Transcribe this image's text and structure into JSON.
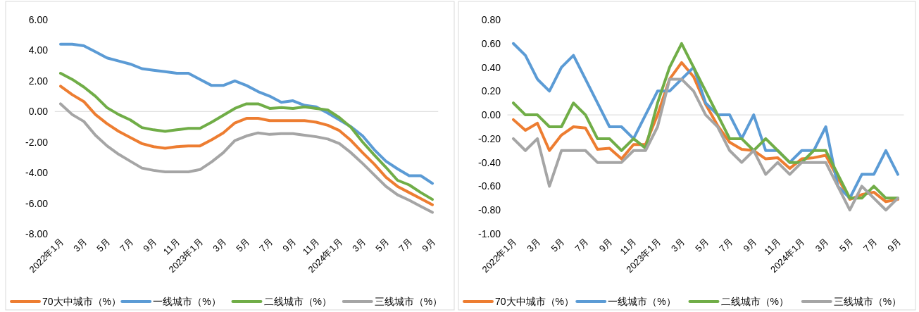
{
  "chart_data": [
    {
      "type": "line",
      "categories": [
        "2022年1月",
        null,
        "3月",
        null,
        "5月",
        null,
        "7月",
        null,
        "9月",
        null,
        "11月",
        null,
        "2023年1月",
        null,
        "3月",
        null,
        "5月",
        null,
        "7月",
        null,
        "9月",
        null,
        "11月",
        null,
        "2024年1月",
        null,
        "3月",
        null,
        "5月",
        null,
        "7月",
        null,
        "9月"
      ],
      "series": [
        {
          "name": "70大中城市（%）",
          "color": "#ed7d31",
          "values": [
            1.65,
            1.1,
            0.65,
            -0.2,
            -0.8,
            -1.3,
            -1.7,
            -2.1,
            -2.3,
            -2.4,
            -2.3,
            -2.25,
            -2.25,
            -1.85,
            -1.4,
            -0.75,
            -0.45,
            -0.45,
            -0.6,
            -0.6,
            -0.6,
            -0.6,
            -0.7,
            -0.9,
            -1.25,
            -1.9,
            -2.7,
            -3.45,
            -4.3,
            -4.9,
            -5.3,
            -5.7,
            -6.1
          ]
        },
        {
          "name": "一线城市（%）",
          "color": "#5b9bd5",
          "values": [
            4.4,
            4.4,
            4.3,
            3.9,
            3.5,
            3.3,
            3.1,
            2.8,
            2.7,
            2.6,
            2.5,
            2.5,
            2.1,
            1.7,
            1.7,
            2.0,
            1.7,
            1.3,
            1.0,
            0.6,
            0.7,
            0.4,
            0.3,
            -0.1,
            -0.55,
            -1.0,
            -1.6,
            -2.5,
            -3.25,
            -3.75,
            -4.2,
            -4.2,
            -4.7
          ]
        },
        {
          "name": "二线城市（%）",
          "color": "#70ad47",
          "values": [
            2.5,
            2.1,
            1.6,
            1.0,
            0.25,
            -0.2,
            -0.55,
            -1.05,
            -1.2,
            -1.3,
            -1.2,
            -1.1,
            -1.1,
            -0.7,
            -0.25,
            0.2,
            0.5,
            0.5,
            0.2,
            0.25,
            0.2,
            0.3,
            0.2,
            0.1,
            -0.4,
            -1.05,
            -2.0,
            -2.85,
            -3.65,
            -4.5,
            -4.8,
            -5.3,
            -5.75
          ]
        },
        {
          "name": "三线城市（%）",
          "color": "#a5a5a5",
          "values": [
            0.5,
            -0.2,
            -0.65,
            -1.55,
            -2.25,
            -2.8,
            -3.25,
            -3.7,
            -3.85,
            -3.95,
            -3.95,
            -3.95,
            -3.8,
            -3.3,
            -2.7,
            -1.9,
            -1.6,
            -1.4,
            -1.5,
            -1.45,
            -1.45,
            -1.55,
            -1.65,
            -1.8,
            -2.1,
            -2.7,
            -3.4,
            -4.15,
            -4.9,
            -5.45,
            -5.8,
            -6.2,
            -6.6
          ]
        }
      ],
      "ylim": [
        -8,
        6
      ],
      "yticks": [
        {
          "value": -8,
          "label": "-8.00"
        },
        {
          "value": -6,
          "label": "-6.00"
        },
        {
          "value": -4,
          "label": "-4.00"
        },
        {
          "value": -2,
          "label": "-2.00"
        },
        {
          "value": 0,
          "label": "0.00"
        },
        {
          "value": 2,
          "label": "2.00"
        },
        {
          "value": 4,
          "label": "4.00"
        },
        {
          "value": 6,
          "label": "6.00"
        }
      ],
      "legend": "bottom"
    },
    {
      "type": "line",
      "categories": [
        "2022年1月",
        null,
        "3月",
        null,
        "5月",
        null,
        "7月",
        null,
        "9月",
        null,
        "11月",
        null,
        "2023年1月",
        null,
        "3月",
        null,
        "5月",
        null,
        "7月",
        null,
        "9月",
        null,
        "11月",
        null,
        "2024年1月",
        null,
        "3月",
        null,
        "5月",
        null,
        "7月",
        null,
        "9月"
      ],
      "series": [
        {
          "name": "70大中城市（%）",
          "color": "#ed7d31",
          "values": [
            -0.04,
            -0.13,
            -0.07,
            -0.3,
            -0.17,
            -0.1,
            -0.11,
            -0.29,
            -0.28,
            -0.37,
            -0.25,
            -0.25,
            0.0,
            0.3,
            0.44,
            0.32,
            0.09,
            -0.09,
            -0.23,
            -0.29,
            -0.3,
            -0.37,
            -0.36,
            -0.45,
            -0.37,
            -0.36,
            -0.34,
            -0.53,
            -0.71,
            -0.67,
            -0.65,
            -0.73,
            -0.71
          ]
        },
        {
          "name": "一线城市（%）",
          "color": "#5b9bd5",
          "values": [
            0.6,
            0.5,
            0.3,
            0.2,
            0.4,
            0.5,
            0.3,
            0.1,
            -0.1,
            -0.1,
            -0.2,
            0.0,
            0.2,
            0.2,
            0.3,
            0.4,
            0.1,
            0.0,
            0.0,
            -0.2,
            0.0,
            -0.3,
            -0.3,
            -0.4,
            -0.3,
            -0.3,
            -0.1,
            -0.6,
            -0.7,
            -0.5,
            -0.5,
            -0.3,
            -0.5
          ]
        },
        {
          "name": "二线城市（%）",
          "color": "#70ad47",
          "values": [
            0.1,
            0.0,
            0.0,
            -0.1,
            -0.1,
            0.1,
            0.0,
            -0.2,
            -0.2,
            -0.3,
            -0.2,
            -0.28,
            0.1,
            0.4,
            0.6,
            0.4,
            0.2,
            0.0,
            -0.2,
            -0.2,
            -0.3,
            -0.2,
            -0.3,
            -0.4,
            -0.4,
            -0.3,
            -0.3,
            -0.5,
            -0.7,
            -0.7,
            -0.6,
            -0.7,
            -0.7
          ]
        },
        {
          "name": "三线城市（%）",
          "color": "#a5a5a5",
          "values": [
            -0.2,
            -0.3,
            -0.2,
            -0.6,
            -0.3,
            -0.3,
            -0.3,
            -0.4,
            -0.4,
            -0.4,
            -0.3,
            -0.3,
            -0.1,
            0.3,
            0.3,
            0.2,
            0.0,
            -0.1,
            -0.3,
            -0.4,
            -0.3,
            -0.5,
            -0.4,
            -0.5,
            -0.4,
            -0.4,
            -0.4,
            -0.6,
            -0.8,
            -0.6,
            -0.7,
            -0.8,
            -0.7
          ]
        }
      ],
      "ylim": [
        -1,
        0.8
      ],
      "yticks": [
        {
          "value": -1,
          "label": "-1.00"
        },
        {
          "value": -0.8,
          "label": "-0.80"
        },
        {
          "value": -0.6,
          "label": "-0.60"
        },
        {
          "value": -0.4,
          "label": "-0.40"
        },
        {
          "value": -0.2,
          "label": "-0.20"
        },
        {
          "value": 0,
          "label": "0.00"
        },
        {
          "value": 0.2,
          "label": "0.20"
        },
        {
          "value": 0.4,
          "label": "0.40"
        },
        {
          "value": 0.6,
          "label": "0.60"
        },
        {
          "value": 0.8,
          "label": "0.80"
        }
      ],
      "legend": "bottom"
    }
  ]
}
